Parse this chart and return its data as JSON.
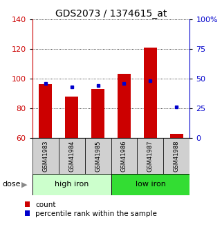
{
  "title": "GDS2073 / 1374615_at",
  "samples": [
    "GSM41983",
    "GSM41984",
    "GSM41985",
    "GSM41986",
    "GSM41987",
    "GSM41988"
  ],
  "count_values": [
    96,
    88,
    93,
    103,
    121,
    63
  ],
  "percentile_values": [
    46,
    43,
    44,
    46,
    48,
    26
  ],
  "ylim_left": [
    60,
    140
  ],
  "ylim_right": [
    0,
    100
  ],
  "yticks_left": [
    60,
    80,
    100,
    120,
    140
  ],
  "yticks_right": [
    0,
    25,
    50,
    75,
    100
  ],
  "yticklabels_right": [
    "0",
    "25",
    "50",
    "75",
    "100%"
  ],
  "bar_color": "#cc0000",
  "dot_color": "#0000cc",
  "group1_label": "high iron",
  "group2_label": "low iron",
  "group1_color": "#ccffcc",
  "group2_color": "#33dd33",
  "dose_label": "dose",
  "legend_count": "count",
  "legend_percentile": "percentile rank within the sample",
  "bar_width": 0.5,
  "base_value": 60,
  "tick_label_color_left": "#cc0000",
  "tick_label_color_right": "#0000cc",
  "title_fontsize": 10,
  "axis_fontsize": 8,
  "legend_fontsize": 7.5,
  "sample_label_fontsize": 6,
  "group_label_fontsize": 8
}
